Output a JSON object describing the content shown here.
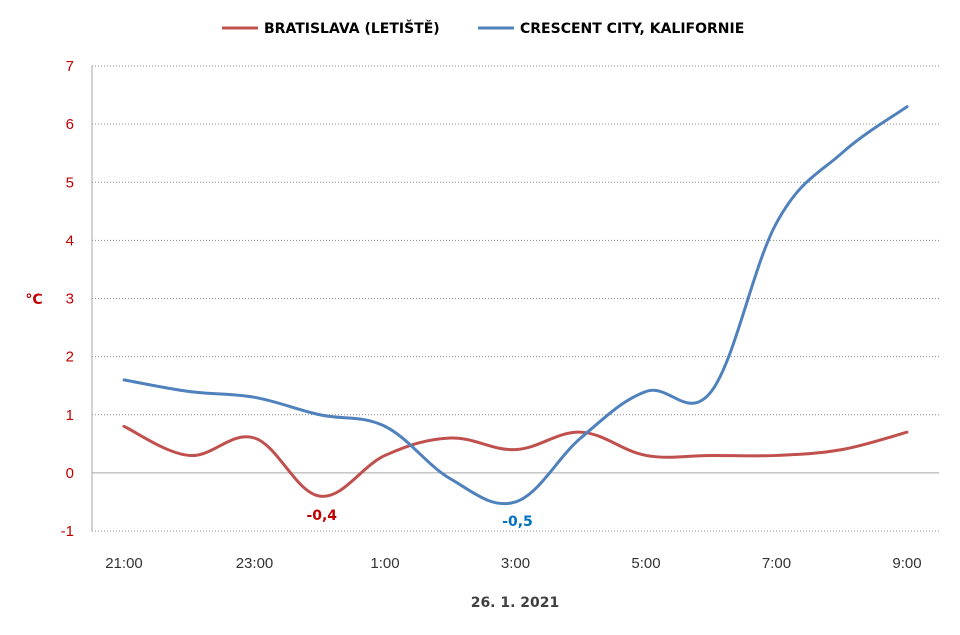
{
  "chart_data": {
    "type": "line",
    "xlabel": "26. 1. 2021",
    "ylabel": "°C",
    "ylim": [
      -1,
      7
    ],
    "yticks": [
      "-1",
      "0",
      "1",
      "2",
      "3",
      "4",
      "5",
      "6",
      "7"
    ],
    "x": [
      "21:00",
      "22:00",
      "23:00",
      "0:00",
      "1:00",
      "2:00",
      "3:00",
      "4:00",
      "5:00",
      "6:00",
      "7:00",
      "8:00",
      "9:00"
    ],
    "xticks": [
      "21:00",
      "23:00",
      "1:00",
      "3:00",
      "5:00",
      "7:00",
      "9:00"
    ],
    "grid": true,
    "legend": "top",
    "series": [
      {
        "name": "BRATISLAVA (LETIŠTĚ)",
        "color": "#c0504d",
        "values": [
          0.8,
          0.3,
          0.6,
          -0.4,
          0.3,
          0.6,
          0.4,
          0.7,
          0.3,
          0.3,
          0.3,
          0.4,
          0.7
        ],
        "annotation": {
          "index": 3,
          "text": "-0,4",
          "color": "#c00000"
        }
      },
      {
        "name": "CRESCENT CITY, KALIFORNIE",
        "color": "#4f81bd",
        "values": [
          1.6,
          1.4,
          1.3,
          1.0,
          0.8,
          -0.1,
          -0.5,
          0.6,
          1.4,
          1.4,
          4.3,
          5.5,
          6.3
        ],
        "annotation": {
          "index": 6,
          "text": "-0,5",
          "color": "#0070c0"
        }
      }
    ]
  }
}
